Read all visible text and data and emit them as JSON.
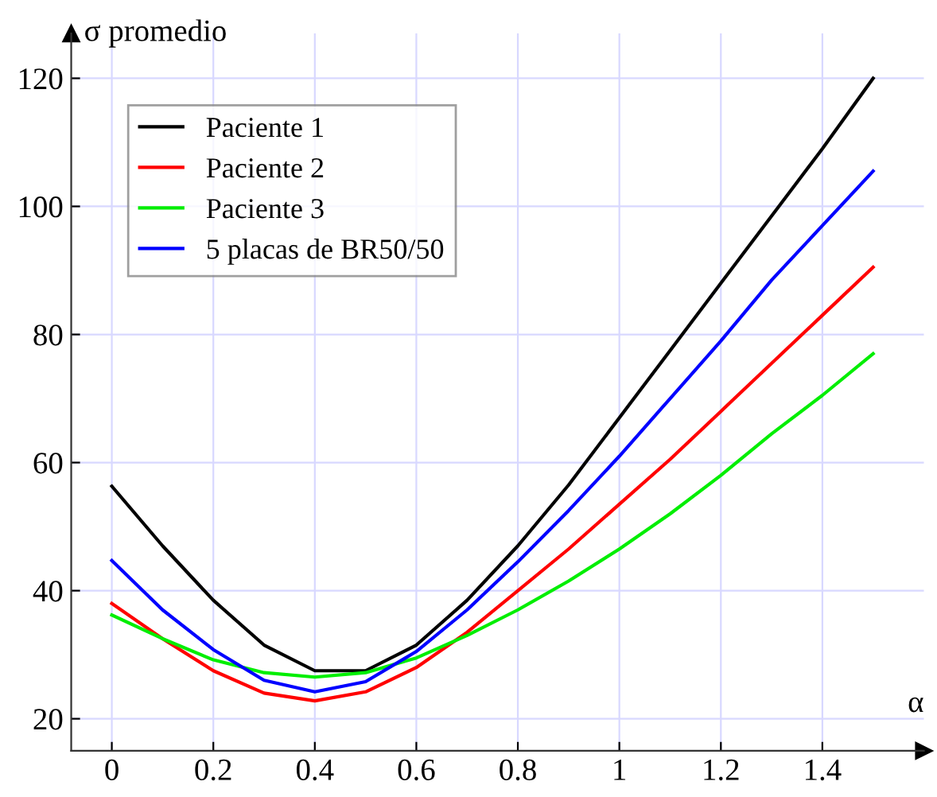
{
  "chart_data": {
    "type": "line",
    "xlabel": "α",
    "ylabel": "σ promedio",
    "x": [
      0,
      0.1,
      0.2,
      0.3,
      0.4,
      0.5,
      0.6,
      0.7,
      0.8,
      0.9,
      1.0,
      1.1,
      1.2,
      1.3,
      1.4,
      1.5
    ],
    "series": [
      {
        "name": "Paciente 1",
        "color": "#000000",
        "values": [
          56.3,
          47,
          38.5,
          31.5,
          27.5,
          27.5,
          31.5,
          38.5,
          47,
          56.5,
          67,
          77.5,
          88,
          98.5,
          109,
          120
        ]
      },
      {
        "name": "Paciente 2",
        "color": "#ff0000",
        "values": [
          38,
          32.5,
          27.5,
          24,
          22.8,
          24.2,
          28,
          33.5,
          40,
          46.5,
          53.5,
          60.5,
          68,
          75.5,
          83,
          90.5
        ]
      },
      {
        "name": "Paciente 3",
        "color": "#00ee00",
        "values": [
          36.2,
          32.5,
          29.2,
          27.2,
          26.5,
          27.2,
          29.5,
          33,
          37,
          41.5,
          46.5,
          52,
          58,
          64.5,
          70.5,
          77
        ]
      },
      {
        "name": "5 placas de BR50/50",
        "color": "#0000ff",
        "values": [
          44.7,
          37,
          30.8,
          26,
          24.2,
          25.8,
          30.5,
          37,
          44.5,
          52.5,
          61,
          70,
          79,
          88.5,
          97,
          105.5
        ]
      }
    ],
    "xlim": [
      -0.08,
      1.6
    ],
    "ylim": [
      15,
      127
    ],
    "xticks": [
      {
        "value": 0,
        "label": "0"
      },
      0.2,
      0.4,
      0.6,
      0.8,
      {
        "value": 1,
        "label": "1"
      },
      1.2,
      1.4
    ],
    "yticks": [
      20,
      40,
      60,
      80,
      100,
      120
    ],
    "grid": true,
    "legend": "top left",
    "marker": "none",
    "line_style": "solid"
  }
}
